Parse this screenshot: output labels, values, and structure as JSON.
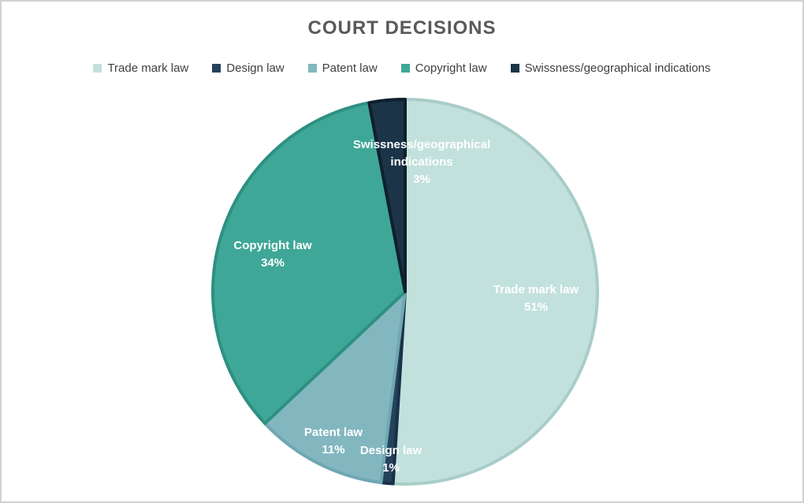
{
  "title": "COURT DECISIONS",
  "chart_data": {
    "type": "pie",
    "title": "COURT DECISIONS",
    "categories": [
      "Trade mark law",
      "Design law",
      "Patent law",
      "Copyright law",
      "Swissness/geographical indications"
    ],
    "values": [
      51,
      1,
      11,
      34,
      3
    ],
    "unit": "%",
    "colors": [
      "#c3e1dc",
      "#24425c",
      "#83b7c0",
      "#3ea797",
      "#1c3447"
    ],
    "border_colors": [
      "#a8cdc8",
      "#1a3148",
      "#6fa7b2",
      "#2e9082",
      "#0f1f2d"
    ],
    "start_angle_deg": 0,
    "direction": "clockwise",
    "legend_position": "top",
    "data_label_text_color": "#ffffff",
    "point_labels": [
      {
        "lines": [
          "Trade mark law",
          "51%"
        ]
      },
      {
        "lines": [
          "Design law",
          "1%"
        ]
      },
      {
        "lines": [
          "Patent law",
          "11%"
        ]
      },
      {
        "lines": [
          "Copyright law",
          "34%"
        ]
      },
      {
        "lines": [
          "Swissness/geographical",
          "indications",
          "3%"
        ]
      }
    ]
  },
  "style": {
    "title_color": "#595959",
    "legend_text_color": "#3f3f3f",
    "background": "#ffffff",
    "frame_border_color": "#d2d2d2"
  }
}
